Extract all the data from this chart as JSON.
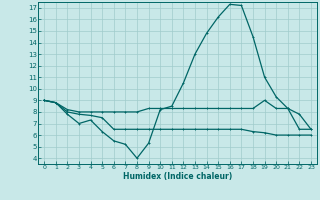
{
  "xlabel": "Humidex (Indice chaleur)",
  "xlim": [
    -0.5,
    23.5
  ],
  "ylim": [
    3.5,
    17.5
  ],
  "yticks": [
    4,
    5,
    6,
    7,
    8,
    9,
    10,
    11,
    12,
    13,
    14,
    15,
    16,
    17
  ],
  "xticks": [
    0,
    1,
    2,
    3,
    4,
    5,
    6,
    7,
    8,
    9,
    10,
    11,
    12,
    13,
    14,
    15,
    16,
    17,
    18,
    19,
    20,
    21,
    22,
    23
  ],
  "background_color": "#c8e8e8",
  "grid_color": "#a0cccc",
  "line_color": "#006666",
  "line1_x": [
    0,
    1,
    2,
    3,
    4,
    5,
    6,
    7,
    8,
    9,
    10,
    11,
    12,
    13,
    14,
    15,
    16,
    17,
    18,
    19,
    20,
    21,
    22,
    23
  ],
  "line1_y": [
    9.0,
    8.8,
    7.8,
    7.0,
    7.3,
    6.3,
    5.5,
    5.2,
    4.0,
    5.3,
    8.2,
    8.5,
    10.5,
    13.0,
    14.8,
    16.2,
    17.3,
    17.2,
    14.5,
    11.0,
    9.3,
    8.3,
    7.8,
    6.5
  ],
  "line2_x": [
    0,
    1,
    2,
    3,
    4,
    5,
    6,
    7,
    8,
    9,
    10,
    11,
    12,
    13,
    14,
    15,
    16,
    17,
    18,
    19,
    20,
    21,
    22,
    23
  ],
  "line2_y": [
    9.0,
    8.8,
    8.2,
    8.0,
    8.0,
    8.0,
    8.0,
    8.0,
    8.0,
    8.3,
    8.3,
    8.3,
    8.3,
    8.3,
    8.3,
    8.3,
    8.3,
    8.3,
    8.3,
    9.0,
    8.3,
    8.3,
    6.5,
    6.5
  ],
  "line3_x": [
    0,
    1,
    2,
    3,
    4,
    5,
    6,
    7,
    8,
    9,
    10,
    11,
    12,
    13,
    14,
    15,
    16,
    17,
    18,
    19,
    20,
    21,
    22,
    23
  ],
  "line3_y": [
    9.0,
    8.8,
    8.0,
    7.8,
    7.7,
    7.5,
    6.5,
    6.5,
    6.5,
    6.5,
    6.5,
    6.5,
    6.5,
    6.5,
    6.5,
    6.5,
    6.5,
    6.5,
    6.3,
    6.2,
    6.0,
    6.0,
    6.0,
    6.0
  ]
}
